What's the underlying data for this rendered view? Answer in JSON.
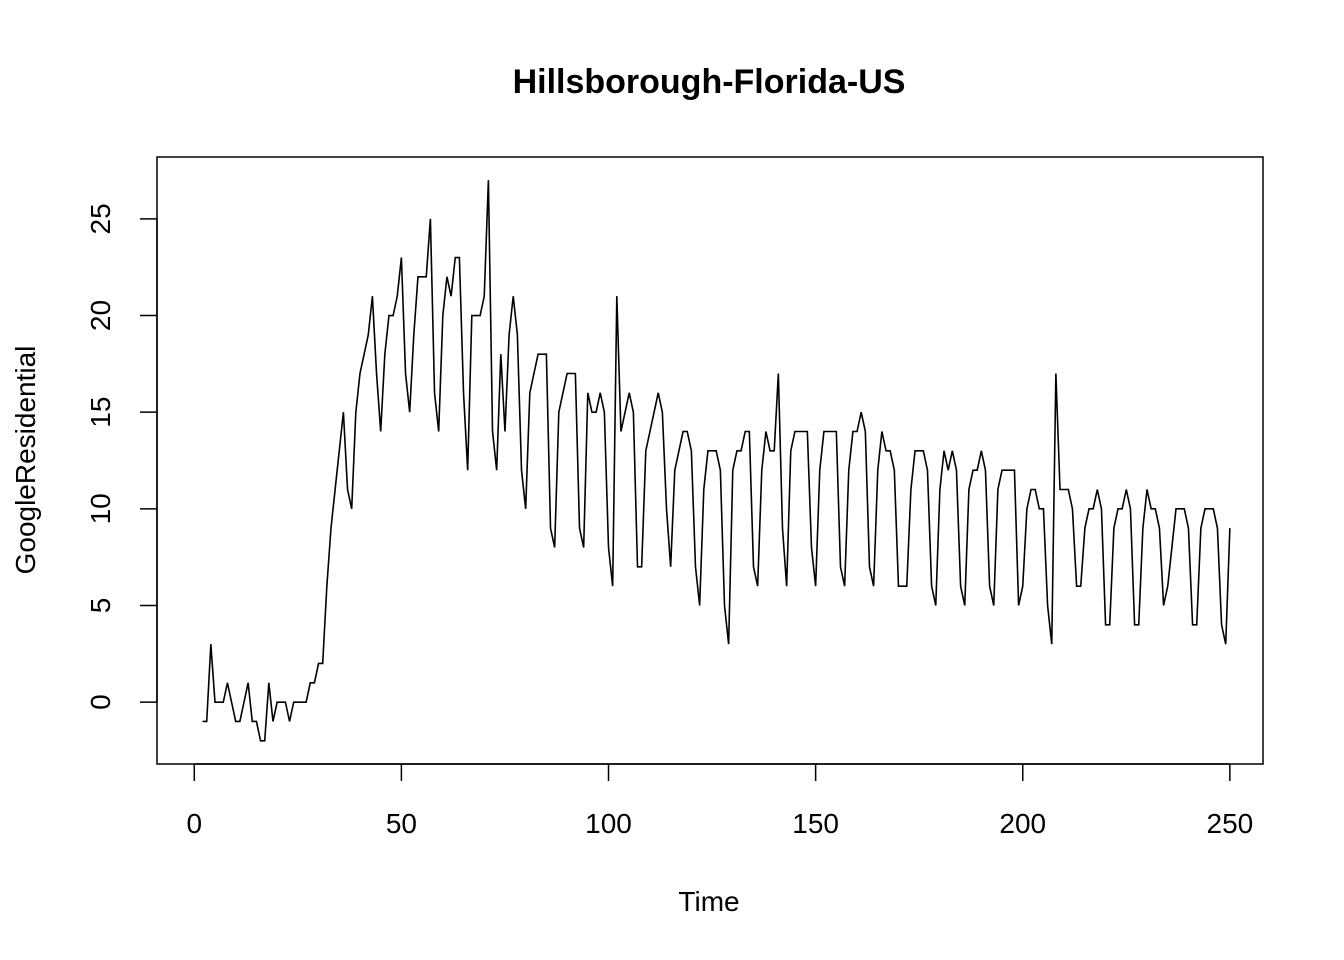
{
  "chart_data": {
    "type": "line",
    "title": "Hillsborough-Florida-US",
    "xlabel": "Time",
    "ylabel": "GoogleResidential",
    "xlim": [
      -9,
      258
    ],
    "ylim": [
      -3.2,
      28.2
    ],
    "xticks": [
      0,
      50,
      100,
      150,
      200,
      250
    ],
    "yticks": [
      0,
      5,
      10,
      15,
      20,
      25
    ],
    "grid": false,
    "legend": "none",
    "line_color": "#000000",
    "series": [
      {
        "x_start": 2,
        "values": [
          -1,
          -1,
          3,
          0,
          0,
          0,
          1,
          0,
          -1,
          -1,
          0,
          1,
          -1,
          -1,
          -2,
          -2,
          1,
          -1,
          0,
          0,
          0,
          -1,
          0,
          0,
          0,
          0,
          1,
          1,
          2,
          2,
          6,
          9,
          11,
          13,
          15,
          11,
          10,
          15,
          17,
          18,
          19,
          21,
          17,
          14,
          18,
          20,
          20,
          21,
          23,
          17,
          15,
          19,
          22,
          22,
          22,
          25,
          16,
          14,
          20,
          22,
          21,
          23,
          23,
          16,
          12,
          20,
          20,
          20,
          21,
          27,
          14,
          12,
          18,
          14,
          19,
          21,
          19,
          12,
          10,
          16,
          17,
          18,
          18,
          18,
          9,
          8,
          15,
          16,
          17,
          17,
          17,
          9,
          8,
          16,
          15,
          15,
          16,
          15,
          8,
          6,
          21,
          14,
          15,
          16,
          15,
          7,
          7,
          13,
          14,
          15,
          16,
          15,
          10,
          7,
          12,
          13,
          14,
          14,
          13,
          7,
          5,
          11,
          13,
          13,
          13,
          12,
          5,
          3,
          12,
          13,
          13,
          14,
          14,
          7,
          6,
          12,
          14,
          13,
          13,
          17,
          9,
          6,
          13,
          14,
          14,
          14,
          14,
          8,
          6,
          12,
          14,
          14,
          14,
          14,
          7,
          6,
          12,
          14,
          14,
          15,
          14,
          7,
          6,
          12,
          14,
          13,
          13,
          12,
          6,
          6,
          6,
          11,
          13,
          13,
          13,
          12,
          6,
          5,
          11,
          13,
          12,
          13,
          12,
          6,
          5,
          11,
          12,
          12,
          13,
          12,
          6,
          5,
          11,
          12,
          12,
          12,
          12,
          5,
          6,
          10,
          11,
          11,
          10,
          10,
          5,
          3,
          17,
          11,
          11,
          11,
          10,
          6,
          6,
          9,
          10,
          10,
          11,
          10,
          4,
          4,
          9,
          10,
          10,
          11,
          10,
          4,
          4,
          9,
          11,
          10,
          10,
          9,
          5,
          6,
          8,
          10,
          10,
          10,
          9,
          4,
          4,
          9,
          10,
          10,
          10,
          9,
          4,
          3,
          9
        ]
      }
    ]
  }
}
